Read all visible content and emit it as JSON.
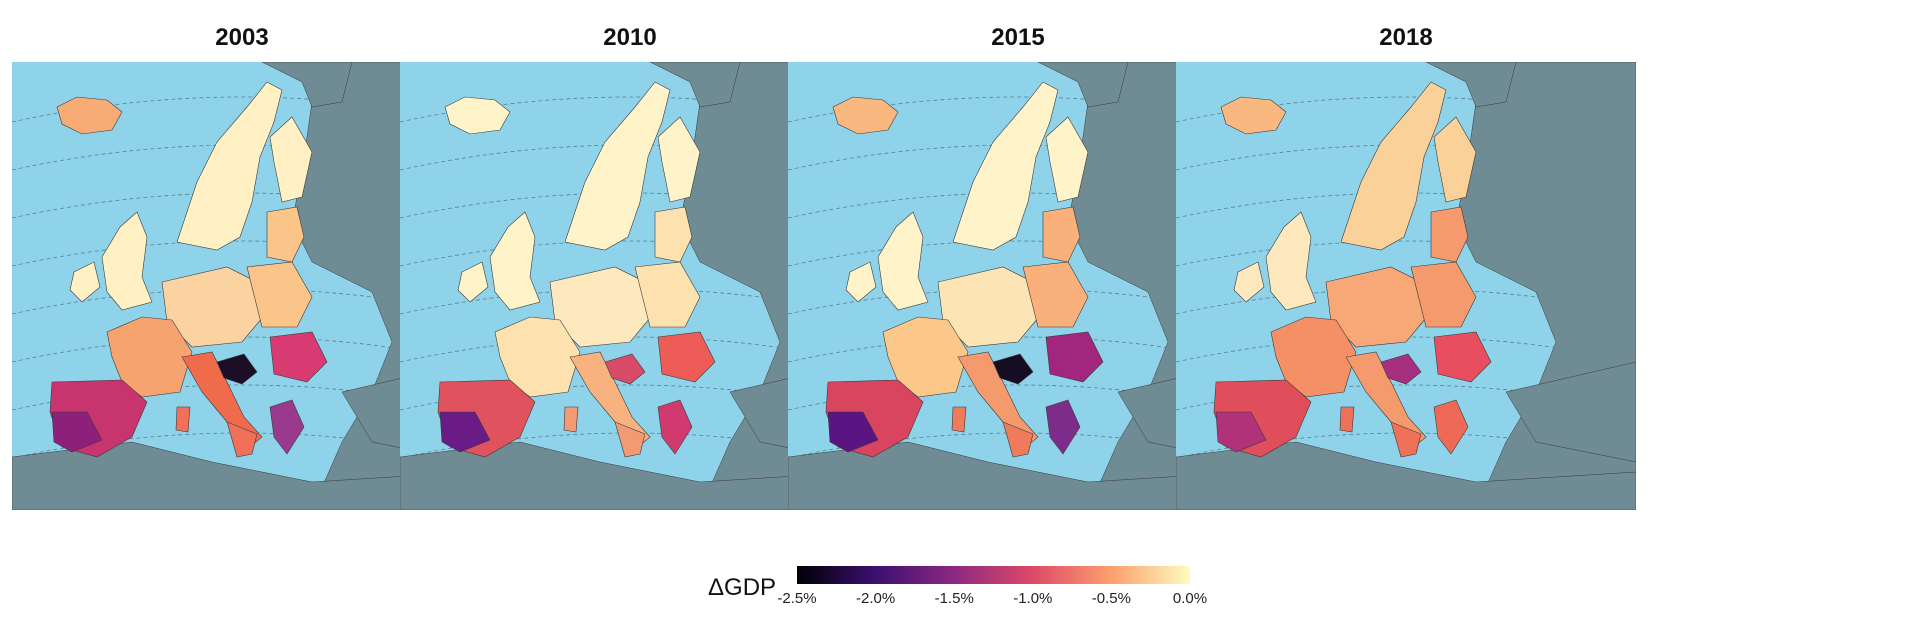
{
  "panels": [
    {
      "year": "2003",
      "spain": "#c8346e",
      "spain_sw": "#8e1f7a",
      "italy": "#ef6b4c",
      "italy_south": "#f0705a",
      "france": "#f6a36f",
      "germany": "#fbd3a0",
      "balkans_croatia": "#1a0f26",
      "romania": "#d73b72",
      "greece": "#9a3a8f",
      "nordic": "#fff1c4",
      "uk": "#fff1c4",
      "poland": "#fbc489",
      "iceland": "#f6ac74"
    },
    {
      "year": "2010",
      "spain": "#e0525e",
      "spain_sw": "#6a1b86",
      "italy": "#f8b27f",
      "italy_south": "#f39a72",
      "france": "#fde2b0",
      "germany": "#fde9bd",
      "balkans_croatia": "#d74a68",
      "romania": "#ee5c58",
      "greece": "#d13a6f",
      "nordic": "#fff3c9",
      "uk": "#fff3c9",
      "poland": "#fde2b0",
      "iceland": "#fff3c9"
    },
    {
      "year": "2015",
      "spain": "#d9445f",
      "spain_sw": "#5a1582",
      "italy": "#f59a6d",
      "italy_south": "#ef7b5c",
      "france": "#fbc88a",
      "germany": "#fde4b4",
      "balkans_croatia": "#150d22",
      "romania": "#a2267e",
      "greece": "#7e2c8c",
      "nordic": "#fff3c9",
      "uk": "#fff3c9",
      "poland": "#f9b07b",
      "iceland": "#f8b87f"
    },
    {
      "year": "2018",
      "spain": "#e04e5c",
      "spain_sw": "#b2327a",
      "italy": "#f59a6d",
      "italy_south": "#ee7158",
      "france": "#f59066",
      "germany": "#f8a877",
      "balkans_croatia": "#a6307f",
      "romania": "#e84e60",
      "greece": "#ee6a57",
      "nordic": "#fbd19a",
      "uk": "#fde9bd",
      "poland": "#f49a6c",
      "iceland": "#f8b87f"
    }
  ],
  "map_colors": {
    "sea": "#8fd3ea",
    "non_eu_land": "#6f8b93",
    "borders": "#3b3b3b",
    "graticule": "#5d7f8a"
  },
  "legend": {
    "label": "ΔGDP",
    "ticks": [
      "-2.5%",
      "-2.0%",
      "-1.5%",
      "-1.0%",
      "-0.5%",
      "0.0%"
    ],
    "colors": [
      "#000004",
      "#3b0f70",
      "#8c2981",
      "#de4968",
      "#fe9f6d",
      "#fcfdbf"
    ]
  }
}
